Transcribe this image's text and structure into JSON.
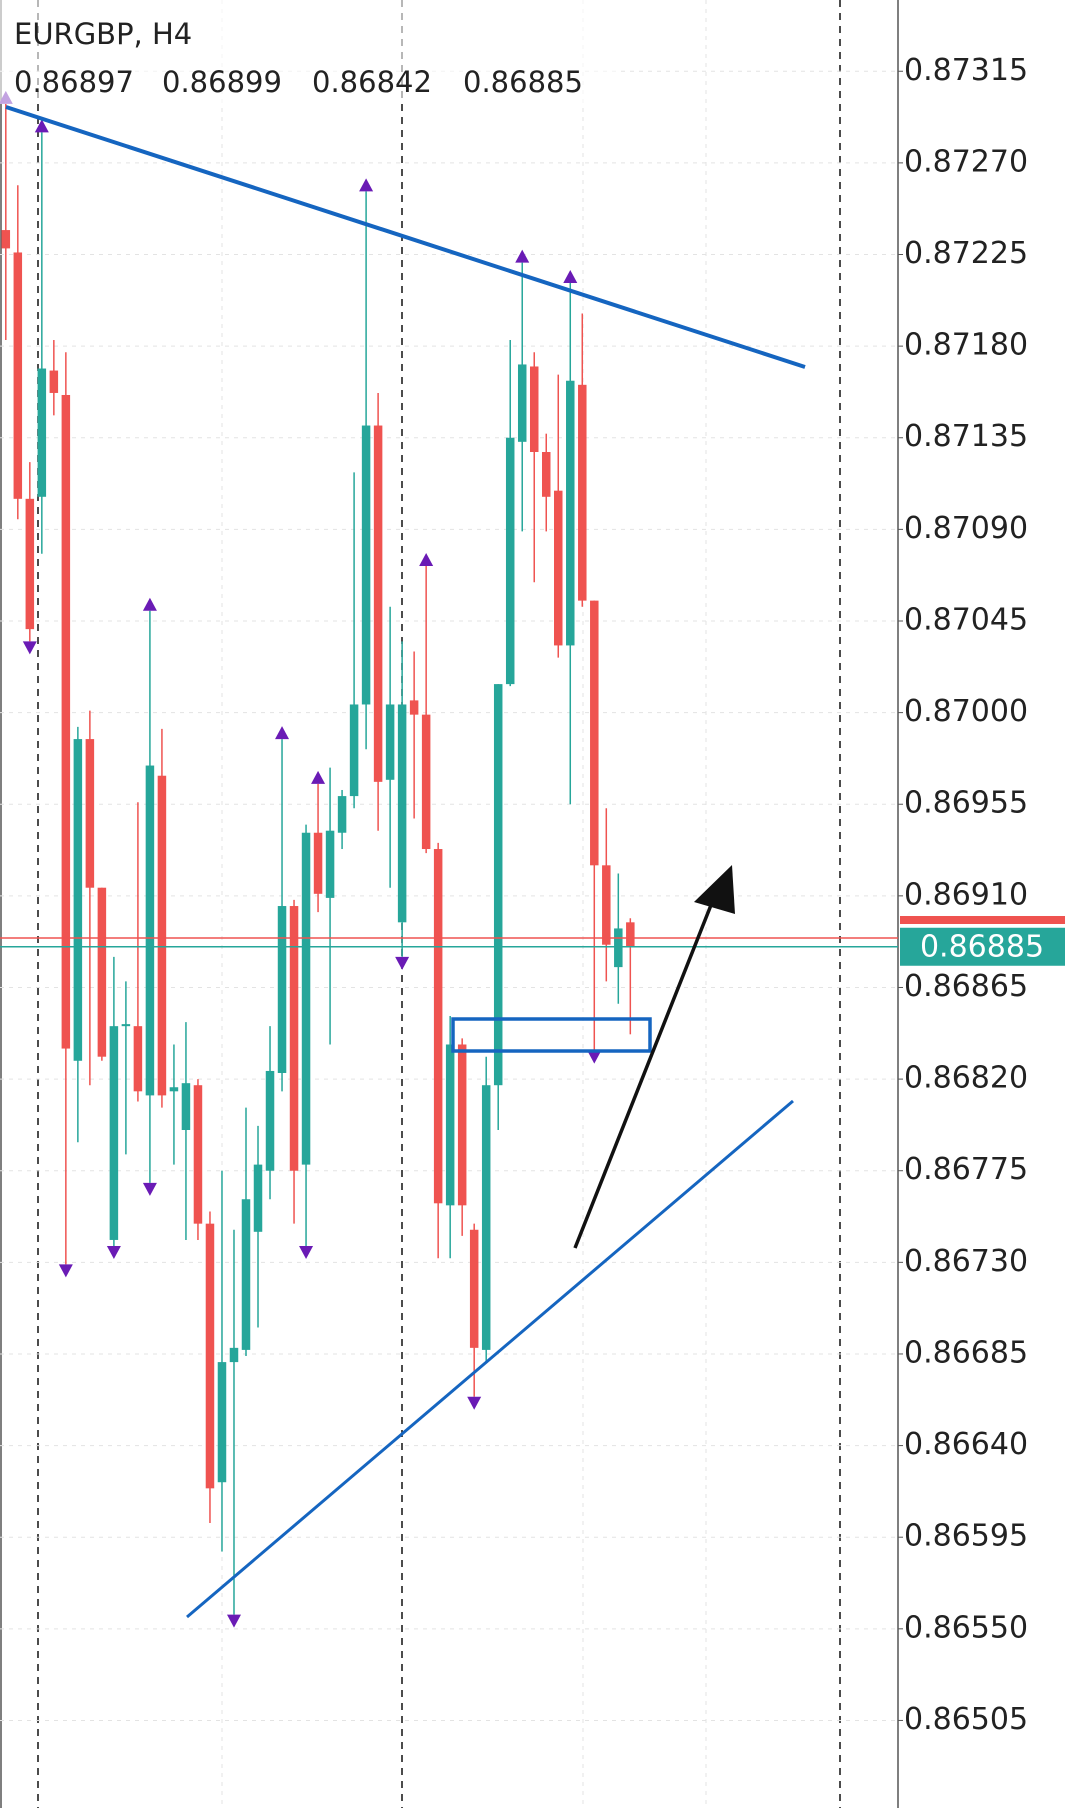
{
  "chart_data": {
    "type": "candlestick",
    "title": "EURGBP, H4",
    "ylim": [
      0.8735,
      0.86462
    ],
    "yticks": [
      {
        "value": 0.87315,
        "label": "0.87315"
      },
      {
        "value": 0.8727,
        "label": "0.87270"
      },
      {
        "value": 0.87225,
        "label": "0.87225"
      },
      {
        "value": 0.8718,
        "label": "0.87180"
      },
      {
        "value": 0.87135,
        "label": "0.87135"
      },
      {
        "value": 0.8709,
        "label": "0.87090"
      },
      {
        "value": 0.87045,
        "label": "0.87045"
      },
      {
        "value": 0.87,
        "label": "0.87000"
      },
      {
        "value": 0.86955,
        "label": "0.86955"
      },
      {
        "value": 0.8691,
        "label": "0.86910"
      },
      {
        "value": 0.86865,
        "label": "0.86865"
      },
      {
        "value": 0.8682,
        "label": "0.86820"
      },
      {
        "value": 0.86775,
        "label": "0.86775"
      },
      {
        "value": 0.8673,
        "label": "0.86730"
      },
      {
        "value": 0.86685,
        "label": "0.86685"
      },
      {
        "value": 0.8664,
        "label": "0.86640"
      },
      {
        "value": 0.86595,
        "label": "0.86595"
      },
      {
        "value": 0.8655,
        "label": "0.86550"
      },
      {
        "value": 0.86505,
        "label": "0.86505"
      }
    ],
    "up_color": "#26a69a",
    "down_color": "#ef5350",
    "fractal_color": "#6a1bb5",
    "grid": true,
    "ohlc": [
      [
        0.87237,
        0.87299,
        0.87183,
        0.87228
      ],
      [
        0.87226,
        0.87259,
        0.87095,
        0.87105
      ],
      [
        0.87105,
        0.87123,
        0.87035,
        0.87041
      ],
      [
        0.87106,
        0.87285,
        0.87078,
        0.87169
      ],
      [
        0.87168,
        0.87183,
        0.87146,
        0.87157
      ],
      [
        0.87156,
        0.87177,
        0.86729,
        0.86835
      ],
      [
        0.86829,
        0.86993,
        0.86789,
        0.86987
      ],
      [
        0.86987,
        0.87001,
        0.86817,
        0.86914
      ],
      [
        0.86914,
        0.86914,
        0.86829,
        0.86831
      ],
      [
        0.86741,
        0.8688,
        0.86738,
        0.86846
      ],
      [
        0.86846,
        0.86868,
        0.86783,
        0.86847
      ],
      [
        0.86846,
        0.86956,
        0.86809,
        0.86814
      ],
      [
        0.86812,
        0.8705,
        0.86769,
        0.86974
      ],
      [
        0.86969,
        0.86992,
        0.86806,
        0.86812
      ],
      [
        0.86814,
        0.86837,
        0.86778,
        0.86816
      ],
      [
        0.86795,
        0.86848,
        0.86741,
        0.86818
      ],
      [
        0.86817,
        0.8682,
        0.86741,
        0.86749
      ],
      [
        0.86749,
        0.86755,
        0.86602,
        0.86619
      ],
      [
        0.86622,
        0.86775,
        0.86588,
        0.86681
      ],
      [
        0.86681,
        0.86746,
        0.86557,
        0.86688
      ],
      [
        0.86687,
        0.86806,
        0.86684,
        0.86761
      ],
      [
        0.86745,
        0.86797,
        0.86698,
        0.86778
      ],
      [
        0.86775,
        0.86846,
        0.86761,
        0.86824
      ],
      [
        0.86823,
        0.86987,
        0.86814,
        0.86905
      ],
      [
        0.86905,
        0.86908,
        0.86749,
        0.86775
      ],
      [
        0.86778,
        0.86945,
        0.86738,
        0.86941
      ],
      [
        0.86941,
        0.86965,
        0.86902,
        0.86911
      ],
      [
        0.86909,
        0.86973,
        0.86837,
        0.86942
      ],
      [
        0.86941,
        0.86962,
        0.86933,
        0.86959
      ],
      [
        0.86959,
        0.87118,
        0.86953,
        0.87004
      ],
      [
        0.87004,
        0.87256,
        0.86982,
        0.87141
      ],
      [
        0.87141,
        0.87157,
        0.86942,
        0.86966
      ],
      [
        0.86967,
        0.87052,
        0.86914,
        0.87004
      ],
      [
        0.86897,
        0.87035,
        0.8688,
        0.87004
      ],
      [
        0.87006,
        0.8703,
        0.86948,
        0.86999
      ],
      [
        0.86999,
        0.87072,
        0.86931,
        0.86933
      ],
      [
        0.86933,
        0.86936,
        0.86732,
        0.86759
      ],
      [
        0.86758,
        0.86851,
        0.86732,
        0.86837
      ],
      [
        0.86837,
        0.8684,
        0.86743,
        0.86758
      ],
      [
        0.86746,
        0.86749,
        0.86664,
        0.86688
      ],
      [
        0.86687,
        0.86831,
        0.86681,
        0.86817
      ],
      [
        0.86817,
        0.87014,
        0.86795,
        0.87014
      ],
      [
        0.87014,
        0.87183,
        0.87013,
        0.87135
      ],
      [
        0.87133,
        0.87221,
        0.87089,
        0.87171
      ],
      [
        0.8717,
        0.87177,
        0.87064,
        0.87128
      ],
      [
        0.87128,
        0.87137,
        0.87089,
        0.87106
      ],
      [
        0.87109,
        0.87166,
        0.87027,
        0.87033
      ],
      [
        0.87033,
        0.87211,
        0.86955,
        0.87163
      ],
      [
        0.87161,
        0.87196,
        0.87052,
        0.87055
      ],
      [
        0.87055,
        0.87055,
        0.86834,
        0.86925
      ],
      [
        0.86925,
        0.86953,
        0.86868,
        0.86886
      ],
      [
        0.86875,
        0.86921,
        0.86857,
        0.86894
      ],
      [
        0.86897,
        0.86899,
        0.86842,
        0.86885
      ]
    ],
    "fractals": {
      "up": [
        0,
        3,
        12,
        23,
        26,
        30,
        35,
        43,
        47
      ],
      "down": [
        2,
        5,
        9,
        12,
        19,
        25,
        33,
        39,
        49
      ]
    }
  }
}
